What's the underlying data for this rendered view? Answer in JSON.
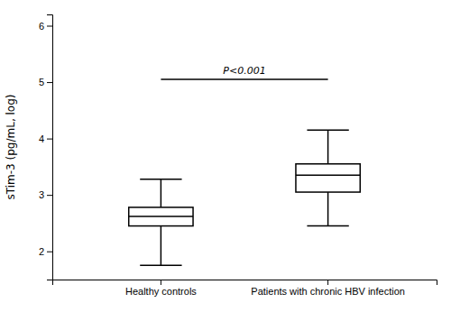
{
  "chart_data": {
    "type": "box",
    "categories": [
      "Healthy controls",
      "Patients with chronic HBV infection"
    ],
    "boxes": [
      {
        "whisker_low": 1.75,
        "q1": 2.45,
        "median": 2.62,
        "q3": 2.78,
        "whisker_high": 3.28
      },
      {
        "whisker_low": 2.45,
        "q1": 3.05,
        "median": 3.35,
        "q3": 3.55,
        "whisker_high": 4.15
      }
    ],
    "ylabel": "sTim-3 (pg/mL, log)",
    "ylim": [
      1.5,
      6.2
    ],
    "yticks": [
      2,
      3,
      4,
      5,
      6
    ],
    "bracket_y": 5.05,
    "annotations": [
      "P<0.001"
    ],
    "color": "#000000"
  }
}
